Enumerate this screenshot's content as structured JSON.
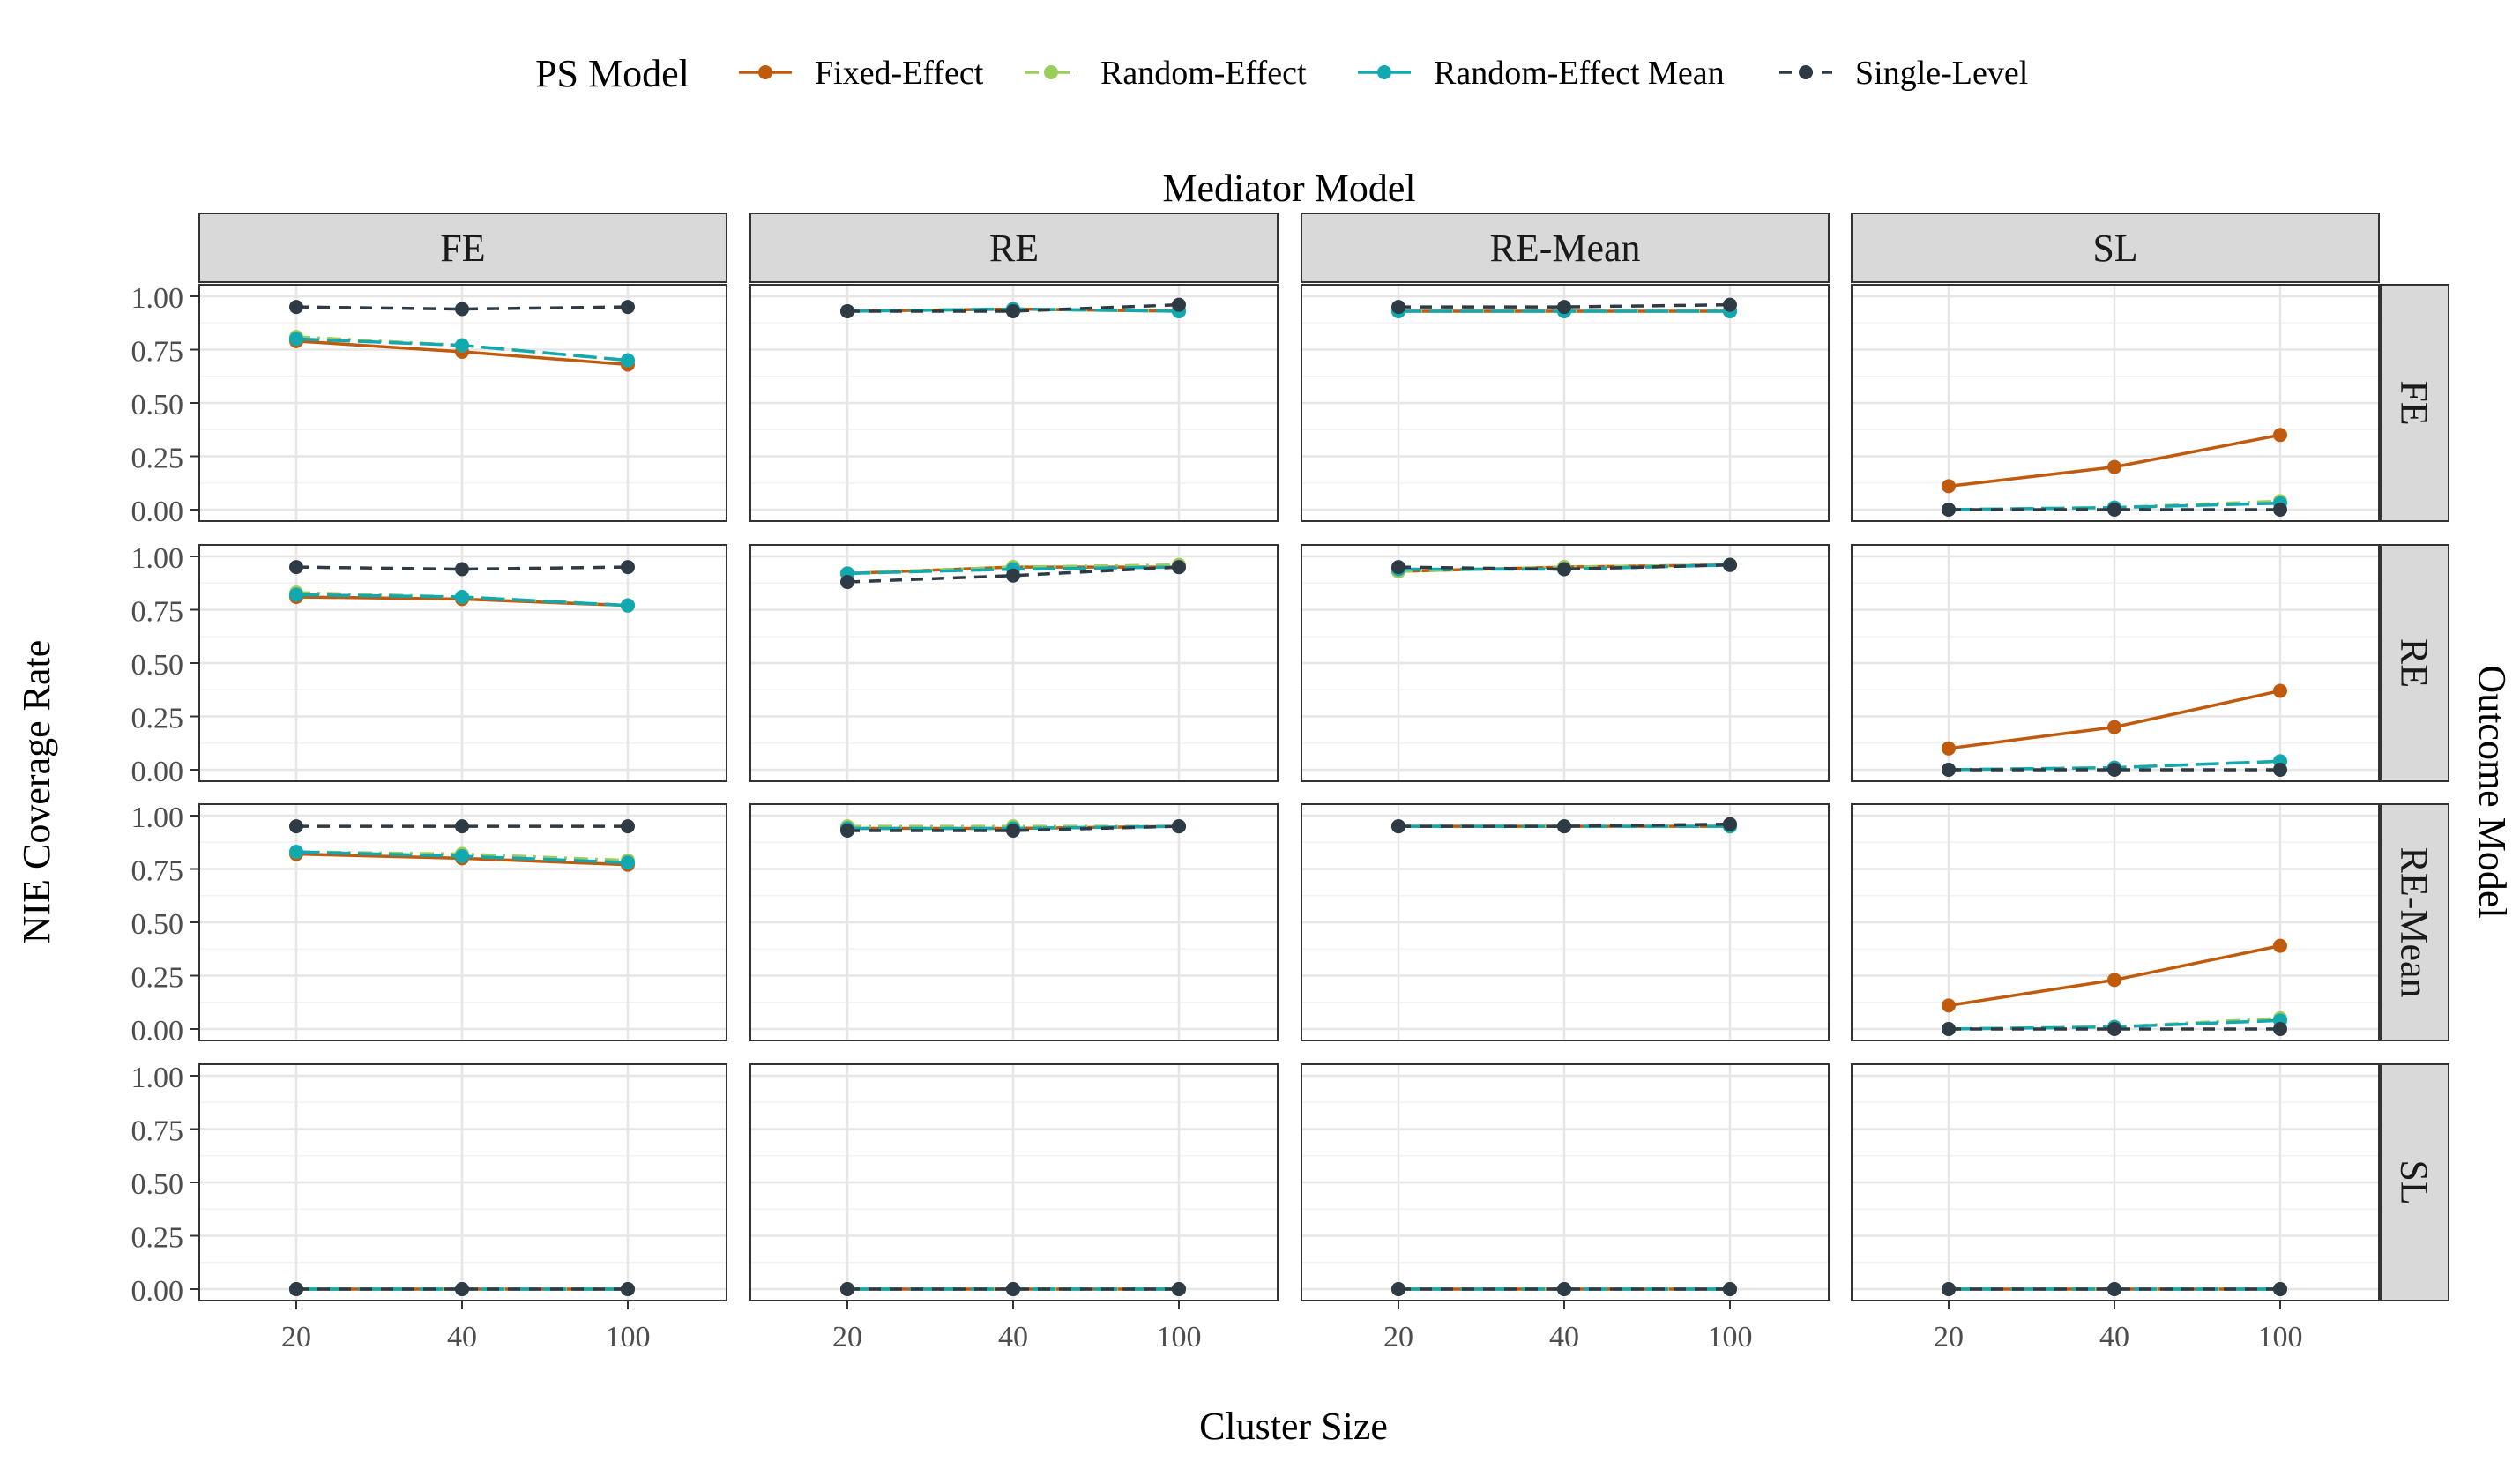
{
  "chart_data": {
    "type": "line",
    "facet_type": "grid",
    "col_title": "Mediator Model",
    "row_title": "Outcome Model",
    "xlabel": "Cluster Size",
    "ylabel": "NIE Coverage Rate",
    "legend_title": "PS Model",
    "legend_position": "top",
    "x_categories": [
      "20",
      "40",
      "100"
    ],
    "ylim": [
      0,
      1
    ],
    "y_ticks": [
      "0.00",
      "0.25",
      "0.50",
      "0.75",
      "1.00"
    ],
    "grid": true,
    "cols": [
      "FE",
      "RE",
      "RE-Mean",
      "SL"
    ],
    "rows": [
      "FE",
      "RE",
      "RE-Mean",
      "SL"
    ],
    "series_meta": [
      {
        "key": "fixed",
        "name": "Fixed-Effect",
        "color": "#C05A0C",
        "dash": "solid"
      },
      {
        "key": "random",
        "name": "Random-Effect",
        "color": "#9ACD5A",
        "dash": "dotdash"
      },
      {
        "key": "remean",
        "name": "Random-Effect Mean",
        "color": "#12A8B0",
        "dash": "longdash"
      },
      {
        "key": "single",
        "name": "Single-Level",
        "color": "#2E3A44",
        "dash": "dashed"
      }
    ],
    "panels": [
      {
        "row": "FE",
        "col": "FE",
        "fixed": [
          0.79,
          0.74,
          0.68
        ],
        "random": [
          0.81,
          0.77,
          0.7
        ],
        "remean": [
          0.8,
          0.77,
          0.7
        ],
        "single": [
          0.95,
          0.94,
          0.95
        ]
      },
      {
        "row": "FE",
        "col": "RE",
        "fixed": [
          0.93,
          0.94,
          0.93
        ],
        "random": [
          0.93,
          0.94,
          0.93
        ],
        "remean": [
          0.93,
          0.94,
          0.93
        ],
        "single": [
          0.93,
          0.93,
          0.96
        ]
      },
      {
        "row": "FE",
        "col": "RE-Mean",
        "fixed": [
          0.93,
          0.93,
          0.93
        ],
        "random": [
          0.93,
          0.93,
          0.93
        ],
        "remean": [
          0.93,
          0.93,
          0.93
        ],
        "single": [
          0.95,
          0.95,
          0.96
        ]
      },
      {
        "row": "FE",
        "col": "SL",
        "fixed": [
          0.11,
          0.2,
          0.35
        ],
        "random": [
          0.0,
          0.01,
          0.04
        ],
        "remean": [
          0.0,
          0.01,
          0.03
        ],
        "single": [
          0.0,
          0.0,
          0.0
        ]
      },
      {
        "row": "RE",
        "col": "FE",
        "fixed": [
          0.81,
          0.8,
          0.77
        ],
        "random": [
          0.83,
          0.81,
          0.77
        ],
        "remean": [
          0.82,
          0.81,
          0.77
        ],
        "single": [
          0.95,
          0.94,
          0.95
        ]
      },
      {
        "row": "RE",
        "col": "RE",
        "fixed": [
          0.92,
          0.95,
          0.95
        ],
        "random": [
          0.92,
          0.95,
          0.96
        ],
        "remean": [
          0.92,
          0.94,
          0.95
        ],
        "single": [
          0.88,
          0.91,
          0.95
        ]
      },
      {
        "row": "RE",
        "col": "RE-Mean",
        "fixed": [
          0.93,
          0.95,
          0.96
        ],
        "random": [
          0.93,
          0.95,
          0.96
        ],
        "remean": [
          0.94,
          0.94,
          0.96
        ],
        "single": [
          0.95,
          0.94,
          0.96
        ]
      },
      {
        "row": "RE",
        "col": "SL",
        "fixed": [
          0.1,
          0.2,
          0.37
        ],
        "random": [
          0.0,
          0.01,
          0.04
        ],
        "remean": [
          0.0,
          0.01,
          0.04
        ],
        "single": [
          0.0,
          0.0,
          0.0
        ]
      },
      {
        "row": "RE-Mean",
        "col": "FE",
        "fixed": [
          0.82,
          0.8,
          0.77
        ],
        "random": [
          0.83,
          0.82,
          0.79
        ],
        "remean": [
          0.83,
          0.81,
          0.78
        ],
        "single": [
          0.95,
          0.95,
          0.95
        ]
      },
      {
        "row": "RE-Mean",
        "col": "RE",
        "fixed": [
          0.94,
          0.94,
          0.95
        ],
        "random": [
          0.95,
          0.95,
          0.95
        ],
        "remean": [
          0.94,
          0.94,
          0.95
        ],
        "single": [
          0.93,
          0.93,
          0.95
        ]
      },
      {
        "row": "RE-Mean",
        "col": "RE-Mean",
        "fixed": [
          0.95,
          0.95,
          0.95
        ],
        "random": [
          0.95,
          0.95,
          0.95
        ],
        "remean": [
          0.95,
          0.95,
          0.95
        ],
        "single": [
          0.95,
          0.95,
          0.96
        ]
      },
      {
        "row": "RE-Mean",
        "col": "SL",
        "fixed": [
          0.11,
          0.23,
          0.39
        ],
        "random": [
          0.0,
          0.01,
          0.05
        ],
        "remean": [
          0.0,
          0.01,
          0.04
        ],
        "single": [
          0.0,
          0.0,
          0.0
        ]
      },
      {
        "row": "SL",
        "col": "FE",
        "fixed": [
          0.0,
          0.0,
          0.0
        ],
        "random": [
          0.0,
          0.0,
          0.0
        ],
        "remean": [
          0.0,
          0.0,
          0.0
        ],
        "single": [
          0.0,
          0.0,
          0.0
        ]
      },
      {
        "row": "SL",
        "col": "RE",
        "fixed": [
          0.0,
          0.0,
          0.0
        ],
        "random": [
          0.0,
          0.0,
          0.0
        ],
        "remean": [
          0.0,
          0.0,
          0.0
        ],
        "single": [
          0.0,
          0.0,
          0.0
        ]
      },
      {
        "row": "SL",
        "col": "RE-Mean",
        "fixed": [
          0.0,
          0.0,
          0.0
        ],
        "random": [
          0.0,
          0.0,
          0.0
        ],
        "remean": [
          0.0,
          0.0,
          0.0
        ],
        "single": [
          0.0,
          0.0,
          0.0
        ]
      },
      {
        "row": "SL",
        "col": "SL",
        "fixed": [
          0.0,
          0.0,
          0.0
        ],
        "random": [
          0.0,
          0.0,
          0.0
        ],
        "remean": [
          0.0,
          0.0,
          0.0
        ],
        "single": [
          0.0,
          0.0,
          0.0
        ]
      }
    ]
  }
}
